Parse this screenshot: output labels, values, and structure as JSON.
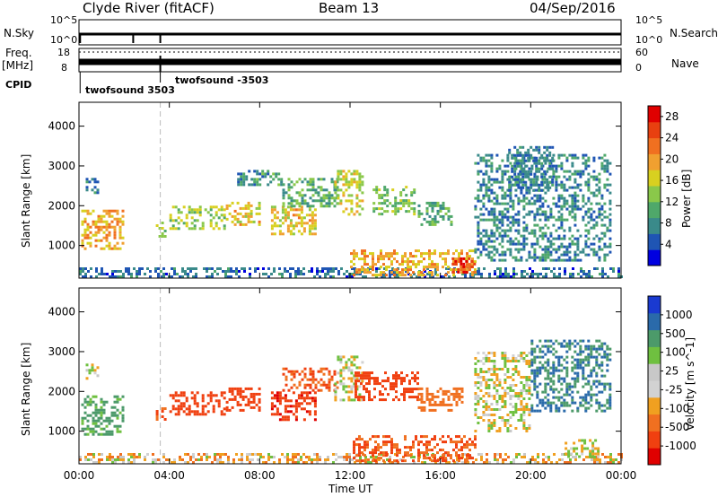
{
  "header": {
    "title": "Clyde River (fitACF)",
    "beam": "Beam 13",
    "date": "04/Sep/2016"
  },
  "top_panel": {
    "left_label": "N.Sky",
    "left_ticks": [
      "10^5",
      "10^0"
    ],
    "right_label": "N.Search",
    "right_ticks": [
      "10^5",
      "10^0"
    ]
  },
  "freq_panel": {
    "left_label": "Freq.",
    "left_unit": "[MHz]",
    "left_ticks": [
      "18",
      "8"
    ],
    "right_label": "Nave",
    "right_ticks": [
      "60",
      "0"
    ]
  },
  "cpid": {
    "label": "CPID",
    "first": "twofsound 3503",
    "second": "twofsound -3503"
  },
  "x_axis": {
    "label": "Time UT",
    "ticks": [
      "00:00",
      "04:00",
      "08:00",
      "12:00",
      "16:00",
      "20:00",
      "00:00"
    ]
  },
  "colors": {
    "power_scale": [
      "#0000e0",
      "#1f55b4",
      "#3a8a8a",
      "#4fa86a",
      "#8ac84a",
      "#d8d020",
      "#f0a030",
      "#f07020",
      "#e84010",
      "#e00000"
    ],
    "velocity_scale": [
      "#e00000",
      "#f04010",
      "#f07020",
      "#f0a020",
      "#d2d2d2",
      "#c8c8c8",
      "#6fc040",
      "#4c9a6a",
      "#2a6aaa",
      "#1a3ad0"
    ]
  },
  "chart_data": [
    {
      "type": "heatmap",
      "title": "",
      "ylabel": "Slant Range [km]",
      "xlabel": "",
      "x_range_hours": [
        0,
        24
      ],
      "ylim": [
        180,
        4600
      ],
      "yticks": [
        1000,
        2000,
        3000,
        4000
      ],
      "colorbar": {
        "label": "Power [dB]",
        "ticks": [
          4,
          8,
          12,
          16,
          20,
          24,
          28
        ],
        "range": [
          0,
          30
        ]
      },
      "regions": [
        {
          "t": [
            0.0,
            24.0
          ],
          "r": [
            200,
            450
          ],
          "level": 5
        },
        {
          "t": [
            0.1,
            2.0
          ],
          "r": [
            900,
            1900
          ],
          "level": 20
        },
        {
          "t": [
            0.3,
            0.8
          ],
          "r": [
            2300,
            2700
          ],
          "level": 6
        },
        {
          "t": [
            3.4,
            3.8
          ],
          "r": [
            1200,
            1600
          ],
          "level": 12
        },
        {
          "t": [
            4.0,
            6.5
          ],
          "r": [
            1400,
            2000
          ],
          "level": 14
        },
        {
          "t": [
            6.5,
            8.0
          ],
          "r": [
            1500,
            2100
          ],
          "level": 18
        },
        {
          "t": [
            7.0,
            9.0
          ],
          "r": [
            2500,
            2900
          ],
          "level": 8
        },
        {
          "t": [
            8.5,
            10.5
          ],
          "r": [
            1300,
            2000
          ],
          "level": 18
        },
        {
          "t": [
            9.0,
            11.5
          ],
          "r": [
            2000,
            2700
          ],
          "level": 10
        },
        {
          "t": [
            11.3,
            12.5
          ],
          "r": [
            1800,
            2900
          ],
          "level": 16
        },
        {
          "t": [
            13.0,
            14.8
          ],
          "r": [
            1800,
            2500
          ],
          "level": 12
        },
        {
          "t": [
            12.0,
            17.5
          ],
          "r": [
            250,
            900
          ],
          "level": 20
        },
        {
          "t": [
            16.5,
            17.5
          ],
          "r": [
            300,
            700
          ],
          "level": 28
        },
        {
          "t": [
            15.0,
            16.5
          ],
          "r": [
            1500,
            2100
          ],
          "level": 10
        },
        {
          "t": [
            17.5,
            23.5
          ],
          "r": [
            600,
            3300
          ],
          "level": 7
        },
        {
          "t": [
            19.0,
            21.0
          ],
          "r": [
            2400,
            3500
          ],
          "level": 6
        }
      ]
    },
    {
      "type": "heatmap",
      "title": "",
      "ylabel": "Slant Range [km]",
      "xlabel": "Time UT",
      "x_range_hours": [
        0,
        24
      ],
      "ylim": [
        180,
        4600
      ],
      "yticks": [
        1000,
        2000,
        3000,
        4000
      ],
      "colorbar": {
        "label": "Velocity [m s^-1]",
        "ticks": [
          1000,
          500,
          100,
          25,
          -25,
          -100,
          -500,
          -1000
        ]
      },
      "regions": [
        {
          "t": [
            0.0,
            24.0
          ],
          "r": [
            200,
            450
          ],
          "vel": -50
        },
        {
          "t": [
            0.1,
            2.0
          ],
          "r": [
            900,
            1900
          ],
          "vel": 150
        },
        {
          "t": [
            0.3,
            0.8
          ],
          "r": [
            2300,
            2700
          ],
          "vel": 0
        },
        {
          "t": [
            3.4,
            3.8
          ],
          "r": [
            1200,
            1600
          ],
          "vel": -300
        },
        {
          "t": [
            4.0,
            6.5
          ],
          "r": [
            1400,
            2000
          ],
          "vel": -400
        },
        {
          "t": [
            6.5,
            8.0
          ],
          "r": [
            1500,
            2100
          ],
          "vel": -400
        },
        {
          "t": [
            8.5,
            10.5
          ],
          "r": [
            1300,
            2000
          ],
          "vel": -700
        },
        {
          "t": [
            9.0,
            11.5
          ],
          "r": [
            2000,
            2600
          ],
          "vel": -300
        },
        {
          "t": [
            11.3,
            12.5
          ],
          "r": [
            1800,
            2900
          ],
          "vel": 0
        },
        {
          "t": [
            12.2,
            15.0
          ],
          "r": [
            1800,
            2500
          ],
          "vel": -400
        },
        {
          "t": [
            12.0,
            17.5
          ],
          "r": [
            250,
            900
          ],
          "vel": -300
        },
        {
          "t": [
            15.0,
            17.0
          ],
          "r": [
            1500,
            2100
          ],
          "vel": -200
        },
        {
          "t": [
            17.5,
            20.0
          ],
          "r": [
            1000,
            3000
          ],
          "vel": 0
        },
        {
          "t": [
            20.0,
            23.5
          ],
          "r": [
            1500,
            3300
          ],
          "vel": 300
        },
        {
          "t": [
            21.5,
            23.0
          ],
          "r": [
            350,
            800
          ],
          "vel": 0
        }
      ]
    }
  ]
}
